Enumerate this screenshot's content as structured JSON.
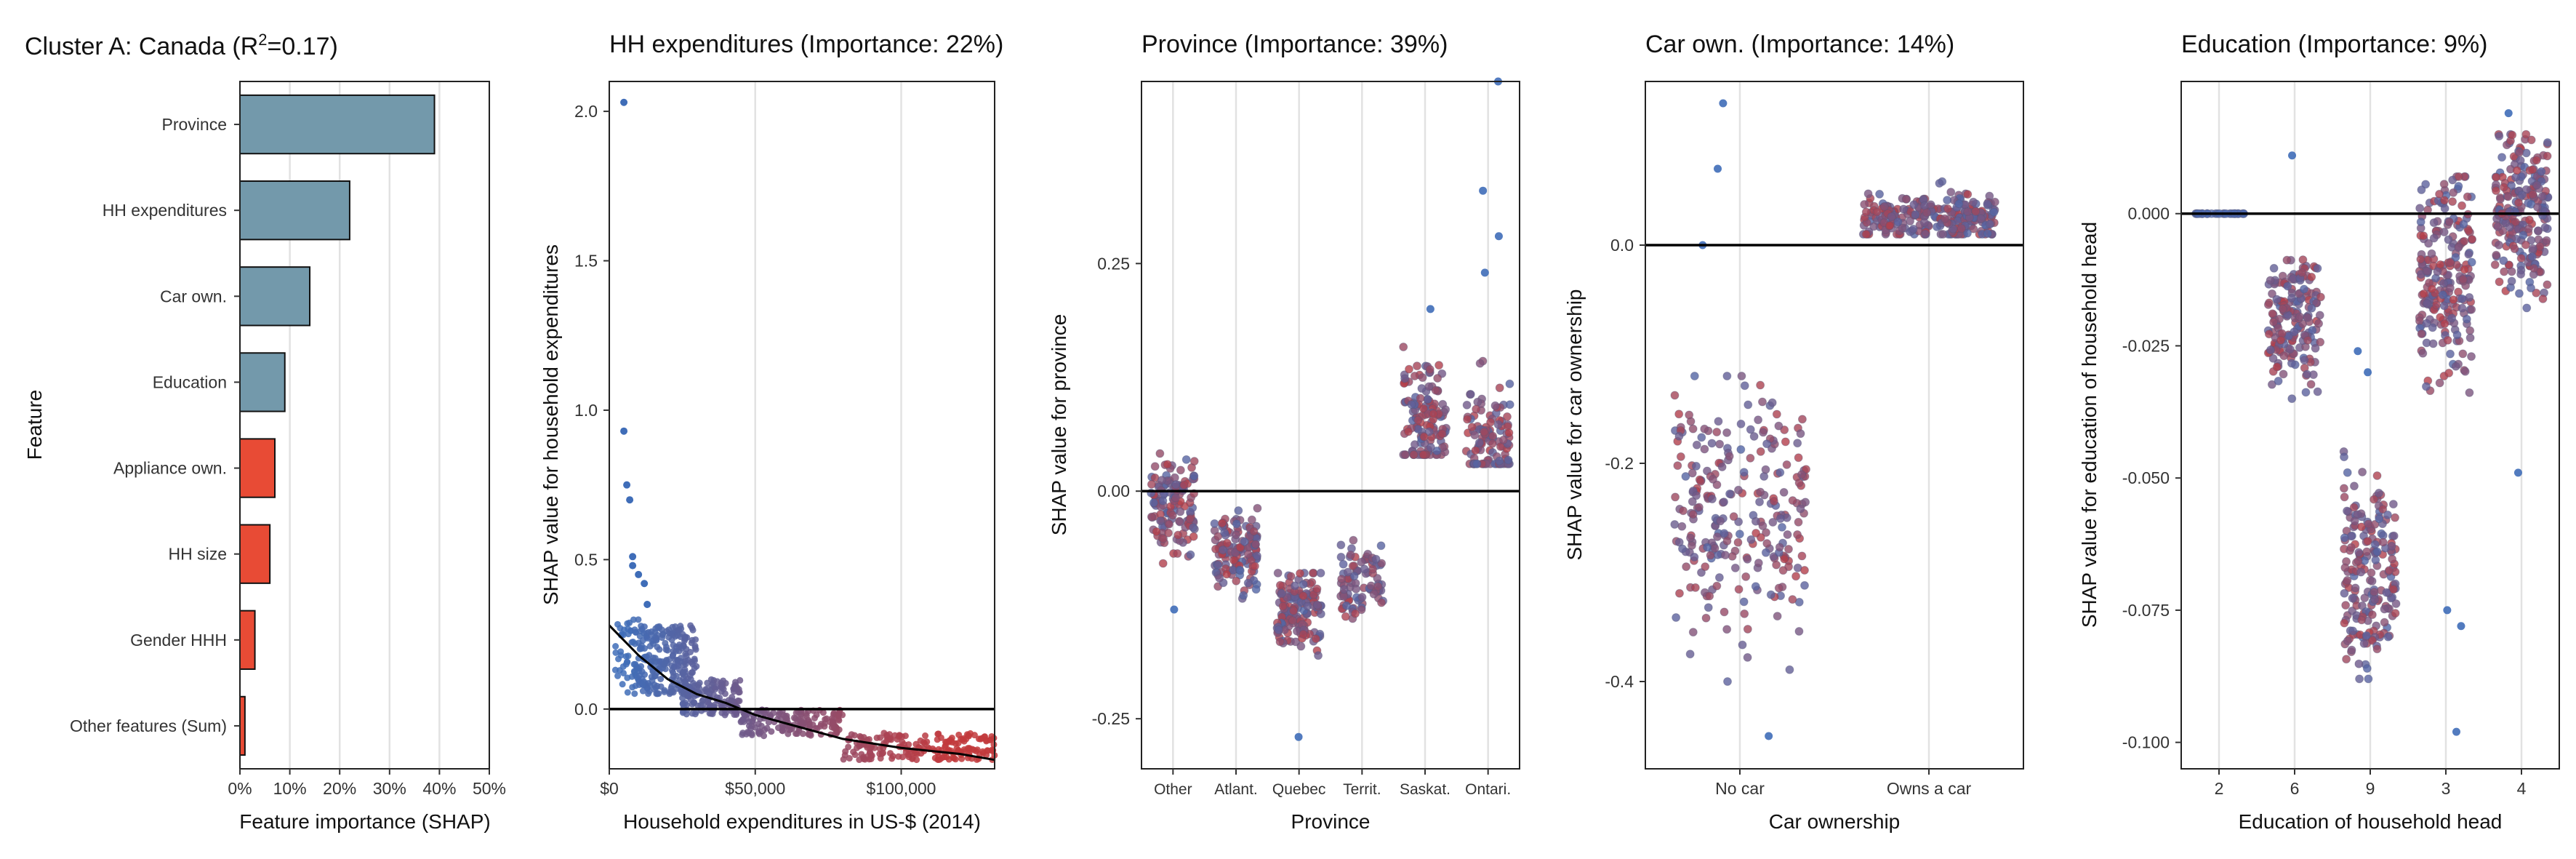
{
  "colors": {
    "bar_positive": "#7399ab",
    "bar_negative": "#e84b35",
    "point_low": "#3f6db8",
    "point_high": "#c2393c",
    "zero_line": "#000000",
    "grid": "#e2e2e2"
  },
  "chart_data": [
    {
      "type": "bar",
      "orientation": "horizontal",
      "title_prefix": "Cluster A: Canada (R",
      "title_sup": "2",
      "title_suffix": "=0.17)",
      "xlabel": "Feature importance (SHAP)",
      "ylabel": "Feature",
      "xlim": [
        0,
        50
      ],
      "xticks": [
        "0%",
        "10%",
        "20%",
        "30%",
        "40%",
        "50%"
      ],
      "grid": true,
      "categories": [
        "Province",
        "HH expenditures",
        "Car own.",
        "Education",
        "Appliance own.",
        "HH size",
        "Gender HHH",
        "Other features (Sum)"
      ],
      "values": [
        39,
        22,
        14,
        9,
        7,
        6,
        3,
        1
      ],
      "bar_colors": [
        "positive",
        "positive",
        "positive",
        "positive",
        "negative",
        "negative",
        "negative",
        "negative"
      ]
    },
    {
      "type": "scatter",
      "title": "HH expenditures (Importance: 22%)",
      "xlabel": "Household expenditures in US-$ (2014)",
      "ylabel": "SHAP value for household expenditures",
      "xlim": [
        0,
        132000
      ],
      "ylim": [
        -0.2,
        2.1
      ],
      "xticks": [
        {
          "v": 0,
          "l": "$0"
        },
        {
          "v": 50000,
          "l": "$50,000"
        },
        {
          "v": 100000,
          "l": "$100,000"
        }
      ],
      "yticks": [
        {
          "v": 0,
          "l": "0.0"
        },
        {
          "v": 0.5,
          "l": "0.5"
        },
        {
          "v": 1,
          "l": "1.0"
        },
        {
          "v": 1.5,
          "l": "1.5"
        },
        {
          "v": 2,
          "l": "2.0"
        }
      ],
      "zero_line": 0,
      "trend": [
        [
          0,
          0.28
        ],
        [
          10000,
          0.18
        ],
        [
          20000,
          0.1
        ],
        [
          30000,
          0.05
        ],
        [
          40000,
          0.02
        ],
        [
          50000,
          -0.02
        ],
        [
          65000,
          -0.06
        ],
        [
          80000,
          -0.1
        ],
        [
          100000,
          -0.13
        ],
        [
          120000,
          -0.15
        ],
        [
          132000,
          -0.17
        ]
      ],
      "outliers": [
        [
          5000,
          2.03
        ],
        [
          5000,
          0.93
        ],
        [
          6000,
          0.75
        ],
        [
          7000,
          0.7
        ],
        [
          8000,
          0.51
        ],
        [
          8000,
          0.48
        ],
        [
          10000,
          0.45
        ],
        [
          12000,
          0.42
        ],
        [
          13000,
          0.35
        ]
      ],
      "cloud": [
        {
          "x": [
            2000,
            12000
          ],
          "y": [
            0.05,
            0.3
          ],
          "n": 60
        },
        {
          "x": [
            10000,
            30000
          ],
          "y": [
            0.05,
            0.28
          ],
          "n": 220
        },
        {
          "x": [
            25000,
            45000
          ],
          "y": [
            -0.02,
            0.1
          ],
          "n": 140
        },
        {
          "x": [
            45000,
            80000
          ],
          "y": [
            -0.09,
            0.0
          ],
          "n": 160
        },
        {
          "x": [
            80000,
            132000
          ],
          "y": [
            -0.17,
            -0.08
          ],
          "n": 200
        }
      ]
    },
    {
      "type": "strip",
      "title": "Province (Importance: 39%)",
      "xlabel": "Province",
      "ylabel": "SHAP value for province",
      "categories": [
        "Other",
        "Atlant.",
        "Quebec",
        "Territ.",
        "Saskat.",
        "Ontari."
      ],
      "ylim": [
        -0.305,
        0.45
      ],
      "yticks": [
        {
          "v": -0.25,
          "l": "-0.25"
        },
        {
          "v": 0,
          "l": "0.00"
        },
        {
          "v": 0.25,
          "l": "0.25"
        }
      ],
      "zero_line": 0,
      "groups": [
        {
          "range": [
            -0.08,
            0.05
          ],
          "center": -0.015,
          "n": 130
        },
        {
          "range": [
            -0.13,
            -0.01
          ],
          "center": -0.07,
          "n": 130
        },
        {
          "range": [
            -0.19,
            -0.09
          ],
          "center": -0.13,
          "n": 140
        },
        {
          "range": [
            -0.14,
            -0.04
          ],
          "center": -0.1,
          "n": 90
        },
        {
          "range": [
            0.04,
            0.2
          ],
          "center": 0.08,
          "n": 130
        },
        {
          "range": [
            0.03,
            0.18
          ],
          "center": 0.06,
          "n": 110
        }
      ],
      "outliers": [
        [
          2,
          -0.27
        ],
        [
          5,
          0.45
        ],
        [
          5,
          0.33
        ],
        [
          5,
          0.28
        ],
        [
          5,
          0.24
        ],
        [
          4,
          0.2
        ],
        [
          0,
          -0.13
        ]
      ]
    },
    {
      "type": "strip",
      "title": "Car own. (Importance: 14%)",
      "xlabel": "Car ownership",
      "ylabel": "SHAP value for car ownership",
      "categories": [
        "No car",
        "Owns a car"
      ],
      "ylim": [
        -0.48,
        0.15
      ],
      "yticks": [
        {
          "v": -0.4,
          "l": "-0.4"
        },
        {
          "v": -0.2,
          "l": "-0.2"
        },
        {
          "v": 0,
          "l": "0.0"
        }
      ],
      "zero_line": 0,
      "groups": [
        {
          "range": [
            -0.4,
            -0.12
          ],
          "center": -0.24,
          "n": 260
        },
        {
          "range": [
            0.01,
            0.065
          ],
          "center": 0.025,
          "n": 260
        }
      ],
      "outliers": [
        [
          0,
          -0.45
        ],
        [
          0,
          0.0
        ],
        [
          0,
          0.07
        ],
        [
          0,
          0.13
        ]
      ]
    },
    {
      "type": "strip",
      "title": "Education (Importance: 9%)",
      "xlabel": "Education of household head",
      "ylabel": "SHAP value for education of household head",
      "categories": [
        "2",
        "6",
        "9",
        "3",
        "4"
      ],
      "ylim": [
        -0.105,
        0.025
      ],
      "yticks": [
        {
          "v": -0.1,
          "l": "-0.100"
        },
        {
          "v": -0.075,
          "l": "-0.075"
        },
        {
          "v": -0.05,
          "l": "-0.050"
        },
        {
          "v": -0.025,
          "l": "-0.025"
        },
        {
          "v": 0,
          "l": "0.000"
        }
      ],
      "zero_line": 0,
      "groups": [
        {
          "range": [
            0,
            0
          ],
          "center": 0,
          "n": 30
        },
        {
          "range": [
            -0.035,
            -0.005
          ],
          "center": -0.02,
          "n": 180
        },
        {
          "range": [
            -0.088,
            -0.045
          ],
          "center": -0.068,
          "n": 200
        },
        {
          "range": [
            -0.04,
            0.007
          ],
          "center": -0.012,
          "n": 220
        },
        {
          "range": [
            -0.02,
            0.015
          ],
          "center": 0.0,
          "n": 220
        }
      ],
      "outliers": [
        [
          3,
          -0.098
        ],
        [
          2,
          -0.026
        ],
        [
          2,
          -0.03
        ],
        [
          1,
          0.011
        ],
        [
          3,
          -0.078
        ],
        [
          4,
          0.019
        ],
        [
          4,
          -0.049
        ],
        [
          3,
          -0.075
        ]
      ]
    }
  ]
}
